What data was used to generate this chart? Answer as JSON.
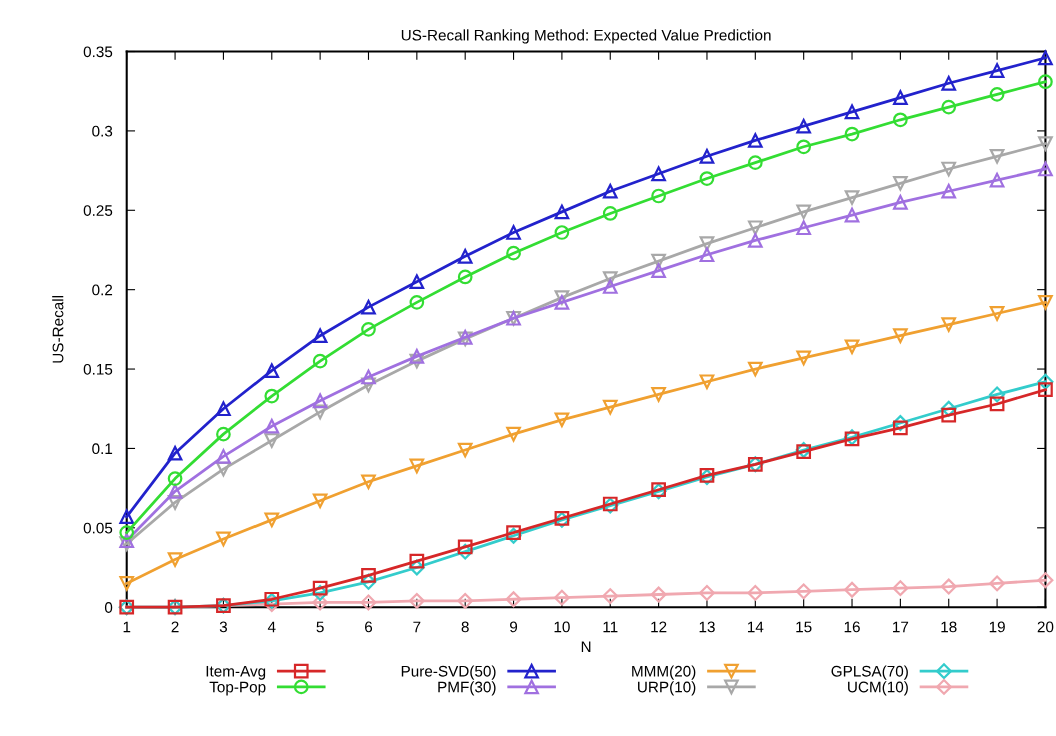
{
  "chart_data": {
    "type": "line",
    "title": "US-Recall Ranking Method: Expected Value Prediction",
    "xlabel": "N",
    "ylabel": "US-Recall",
    "x": [
      1,
      2,
      3,
      4,
      5,
      6,
      7,
      8,
      9,
      10,
      11,
      12,
      13,
      14,
      15,
      16,
      17,
      18,
      19,
      20
    ],
    "xlim": [
      1,
      20
    ],
    "xticks": [
      1,
      2,
      3,
      4,
      5,
      6,
      7,
      8,
      9,
      10,
      11,
      12,
      13,
      14,
      15,
      16,
      17,
      18,
      19,
      20
    ],
    "ylim": [
      0,
      0.35
    ],
    "yticks": [
      0,
      0.05,
      0.1,
      0.15,
      0.2,
      0.25,
      0.3,
      0.35
    ],
    "grid": false,
    "legend": "bottom",
    "line_style": "solid",
    "series": [
      {
        "name": "Item-Avg",
        "color": "#d62728",
        "marker": "square",
        "values": [
          0,
          0,
          0.001,
          0.005,
          0.012,
          0.02,
          0.029,
          0.038,
          0.047,
          0.056,
          0.065,
          0.074,
          0.083,
          0.09,
          0.098,
          0.106,
          0.113,
          0.121,
          0.128,
          0.137
        ]
      },
      {
        "name": "Top-Pop",
        "color": "#33dd33",
        "marker": "circle",
        "values": [
          0.047,
          0.081,
          0.109,
          0.133,
          0.155,
          0.175,
          0.192,
          0.208,
          0.223,
          0.236,
          0.248,
          0.259,
          0.27,
          0.28,
          0.29,
          0.298,
          0.307,
          0.315,
          0.323,
          0.331
        ]
      },
      {
        "name": "Pure-SVD(50)",
        "color": "#2222cc",
        "marker": "triangle",
        "values": [
          0.057,
          0.097,
          0.125,
          0.149,
          0.171,
          0.189,
          0.205,
          0.221,
          0.236,
          0.249,
          0.262,
          0.273,
          0.284,
          0.294,
          0.303,
          0.312,
          0.321,
          0.33,
          0.338,
          0.346
        ]
      },
      {
        "name": "PMF(30)",
        "color": "#a070e0",
        "marker": "triangle",
        "values": [
          0.042,
          0.073,
          0.095,
          0.114,
          0.13,
          0.145,
          0.158,
          0.17,
          0.182,
          0.192,
          0.202,
          0.212,
          0.222,
          0.231,
          0.239,
          0.247,
          0.255,
          0.262,
          0.269,
          0.276
        ]
      },
      {
        "name": "MMM(20)",
        "color": "#f0a030",
        "marker": "triangle_down",
        "values": [
          0.015,
          0.03,
          0.043,
          0.055,
          0.067,
          0.079,
          0.089,
          0.099,
          0.109,
          0.118,
          0.126,
          0.134,
          0.142,
          0.15,
          0.157,
          0.164,
          0.171,
          0.178,
          0.185,
          0.192
        ]
      },
      {
        "name": "URP(10)",
        "color": "#a8a8a8",
        "marker": "triangle_down",
        "values": [
          0.04,
          0.066,
          0.087,
          0.105,
          0.123,
          0.14,
          0.155,
          0.169,
          0.182,
          0.195,
          0.207,
          0.218,
          0.229,
          0.239,
          0.249,
          0.258,
          0.267,
          0.276,
          0.284,
          0.292
        ]
      },
      {
        "name": "GPLSA(70)",
        "color": "#33cccc",
        "marker": "diamond",
        "values": [
          0,
          0,
          0.001,
          0.004,
          0.009,
          0.016,
          0.025,
          0.035,
          0.045,
          0.055,
          0.064,
          0.073,
          0.082,
          0.09,
          0.099,
          0.107,
          0.116,
          0.125,
          0.134,
          0.142
        ]
      },
      {
        "name": "UCM(10)",
        "color": "#f0a8b0",
        "marker": "diamond",
        "values": [
          0,
          0,
          0.001,
          0.002,
          0.003,
          0.003,
          0.004,
          0.004,
          0.005,
          0.006,
          0.007,
          0.008,
          0.009,
          0.009,
          0.01,
          0.011,
          0.012,
          0.013,
          0.015,
          0.017
        ]
      }
    ]
  }
}
